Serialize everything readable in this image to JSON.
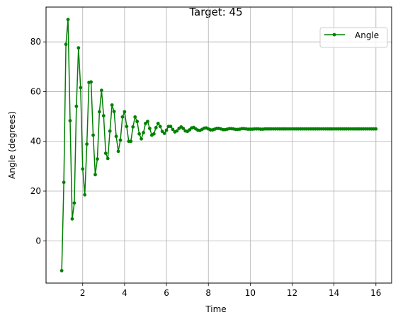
{
  "chart_data": {
    "type": "line",
    "title": "Target: 45",
    "xlabel": "Time",
    "ylabel": "Angle (degrees)",
    "xlim": [
      0.25,
      16.75
    ],
    "ylim": [
      -17,
      94
    ],
    "xticks": [
      2,
      4,
      6,
      8,
      10,
      12,
      14,
      16
    ],
    "yticks": [
      0,
      20,
      40,
      60,
      80
    ],
    "grid": true,
    "legend_position": "upper right",
    "colors": {
      "series": "#008000",
      "grid": "#b0b0b0"
    },
    "series": [
      {
        "name": "Angle",
        "marker": "point",
        "x": [
          1.0,
          1.1,
          1.2,
          1.3,
          1.4,
          1.5,
          1.6,
          1.7,
          1.8,
          1.9,
          2.0,
          2.1,
          2.2,
          2.3,
          2.4,
          2.5,
          2.6,
          2.7,
          2.8,
          2.9,
          3.0,
          3.1,
          3.2,
          3.3,
          3.4,
          3.5,
          3.6,
          3.7,
          3.8,
          3.9,
          4.0,
          4.1,
          4.2,
          4.3,
          4.4,
          4.5,
          4.6,
          4.7,
          4.8,
          4.9,
          5.0,
          5.1,
          5.2,
          5.3,
          5.4,
          5.5,
          5.6,
          5.7,
          5.8,
          5.9,
          6.0,
          6.1,
          6.2,
          6.3,
          6.4,
          6.5,
          6.6,
          6.7,
          6.8,
          6.9,
          7.0,
          7.1,
          7.2,
          7.3,
          7.4,
          7.5,
          7.6,
          7.7,
          7.8,
          7.9,
          8.0,
          8.1,
          8.2,
          8.3,
          8.4,
          8.5,
          8.6,
          8.7,
          8.8,
          8.9,
          9.0,
          9.1,
          9.2,
          9.3,
          9.4,
          9.5,
          9.6,
          9.7,
          9.8,
          9.9,
          10.0,
          10.1,
          10.2,
          10.3,
          10.4,
          10.5,
          10.6,
          10.7,
          10.8,
          10.9,
          11.0,
          11.1,
          11.2,
          11.3,
          11.4,
          11.5,
          11.6,
          11.7,
          11.8,
          11.9,
          12.0,
          12.1,
          12.2,
          12.3,
          12.4,
          12.5,
          12.6,
          12.7,
          12.8,
          12.9,
          13.0,
          13.1,
          13.2,
          13.3,
          13.4,
          13.5,
          13.6,
          13.7,
          13.8,
          13.9,
          14.0,
          14.1,
          14.2,
          14.3,
          14.4,
          14.5,
          14.6,
          14.7,
          14.8,
          14.9,
          15.0,
          15.1,
          15.2,
          15.3,
          15.4,
          15.5,
          15.6,
          15.7,
          15.8,
          15.9,
          16.0
        ],
        "y": [
          -12.0,
          23.5,
          79.0,
          89.0,
          48.3,
          8.8,
          15.2,
          54.1,
          77.6,
          61.6,
          28.9,
          18.5,
          38.9,
          63.7,
          63.9,
          42.5,
          26.6,
          32.9,
          51.9,
          60.5,
          50.3,
          35.2,
          33.1,
          44.1,
          54.6,
          52.0,
          42.0,
          36.0,
          40.5,
          49.8,
          51.9,
          46.0,
          40.0,
          40.0,
          45.8,
          49.8,
          48.0,
          43.0,
          41.0,
          43.5,
          47.2,
          48.0,
          45.2,
          42.5,
          43.0,
          45.5,
          47.2,
          46.0,
          44.0,
          43.2,
          44.5,
          46.0,
          46.0,
          44.8,
          43.8,
          44.2,
          45.2,
          45.8,
          45.2,
          44.2,
          44.0,
          44.6,
          45.4,
          45.6,
          45.0,
          44.5,
          44.4,
          44.8,
          45.3,
          45.4,
          45.0,
          44.6,
          44.6,
          44.9,
          45.2,
          45.2,
          45.0,
          44.7,
          44.7,
          44.9,
          45.1,
          45.1,
          45.0,
          44.8,
          44.8,
          44.9,
          45.1,
          45.1,
          45.0,
          44.9,
          44.9,
          44.9,
          45.0,
          45.0,
          45.0,
          44.9,
          44.9,
          45.0,
          45.0,
          45.0,
          45.0,
          45.0,
          45.0,
          45.0,
          45.0,
          45.0,
          45.0,
          45.0,
          45.0,
          45.0,
          45.0,
          45.0,
          45.0,
          45.0,
          45.0,
          45.0,
          45.0,
          45.0,
          45.0,
          45.0,
          45.0,
          45.0,
          45.0,
          45.0,
          45.0,
          45.0,
          45.0,
          45.0,
          45.0,
          45.0,
          45.0,
          45.0,
          45.0,
          45.0,
          45.0,
          45.0,
          45.0,
          45.0,
          45.0,
          45.0,
          45.0,
          45.0,
          45.0,
          45.0,
          45.0,
          45.0,
          45.0,
          45.0,
          45.0,
          45.0,
          45.0
        ]
      }
    ]
  }
}
